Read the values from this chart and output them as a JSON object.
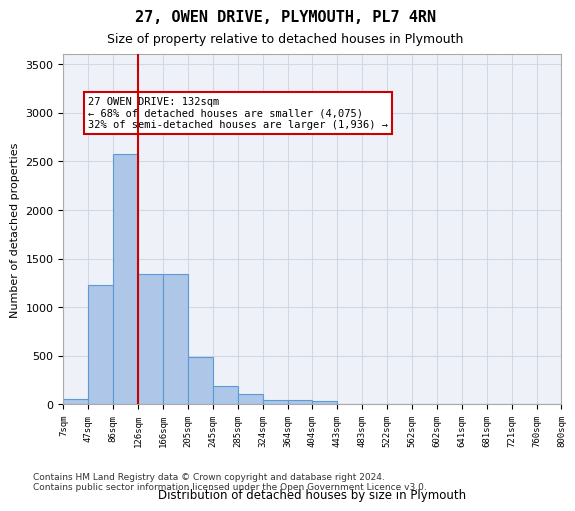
{
  "title1": "27, OWEN DRIVE, PLYMOUTH, PL7 4RN",
  "title2": "Size of property relative to detached houses in Plymouth",
  "xlabel": "Distribution of detached houses by size in Plymouth",
  "ylabel": "Number of detached properties",
  "bin_labels": [
    "7sqm",
    "47sqm",
    "86sqm",
    "126sqm",
    "166sqm",
    "205sqm",
    "245sqm",
    "285sqm",
    "324sqm",
    "364sqm",
    "404sqm",
    "443sqm",
    "483sqm",
    "522sqm",
    "562sqm",
    "602sqm",
    "641sqm",
    "681sqm",
    "721sqm",
    "760sqm",
    "800sqm"
  ],
  "bar_values": [
    60,
    1230,
    2580,
    1340,
    1340,
    490,
    190,
    105,
    50,
    50,
    30,
    0,
    0,
    0,
    0,
    0,
    0,
    0,
    0,
    0
  ],
  "bar_color": "#aec6e8",
  "bar_edge_color": "#5b9bd5",
  "grid_color": "#d0d8e8",
  "background_color": "#eef2f8",
  "vline_x": 3,
  "vline_color": "#cc0000",
  "annotation_text": "27 OWEN DRIVE: 132sqm\n← 68% of detached houses are smaller (4,075)\n32% of semi-detached houses are larger (1,936) →",
  "annotation_box_color": "#cc0000",
  "ylim": [
    0,
    3600
  ],
  "yticks": [
    0,
    500,
    1000,
    1500,
    2000,
    2500,
    3000,
    3500
  ],
  "footer_line1": "Contains HM Land Registry data © Crown copyright and database right 2024.",
  "footer_line2": "Contains public sector information licensed under the Open Government Licence v3.0."
}
